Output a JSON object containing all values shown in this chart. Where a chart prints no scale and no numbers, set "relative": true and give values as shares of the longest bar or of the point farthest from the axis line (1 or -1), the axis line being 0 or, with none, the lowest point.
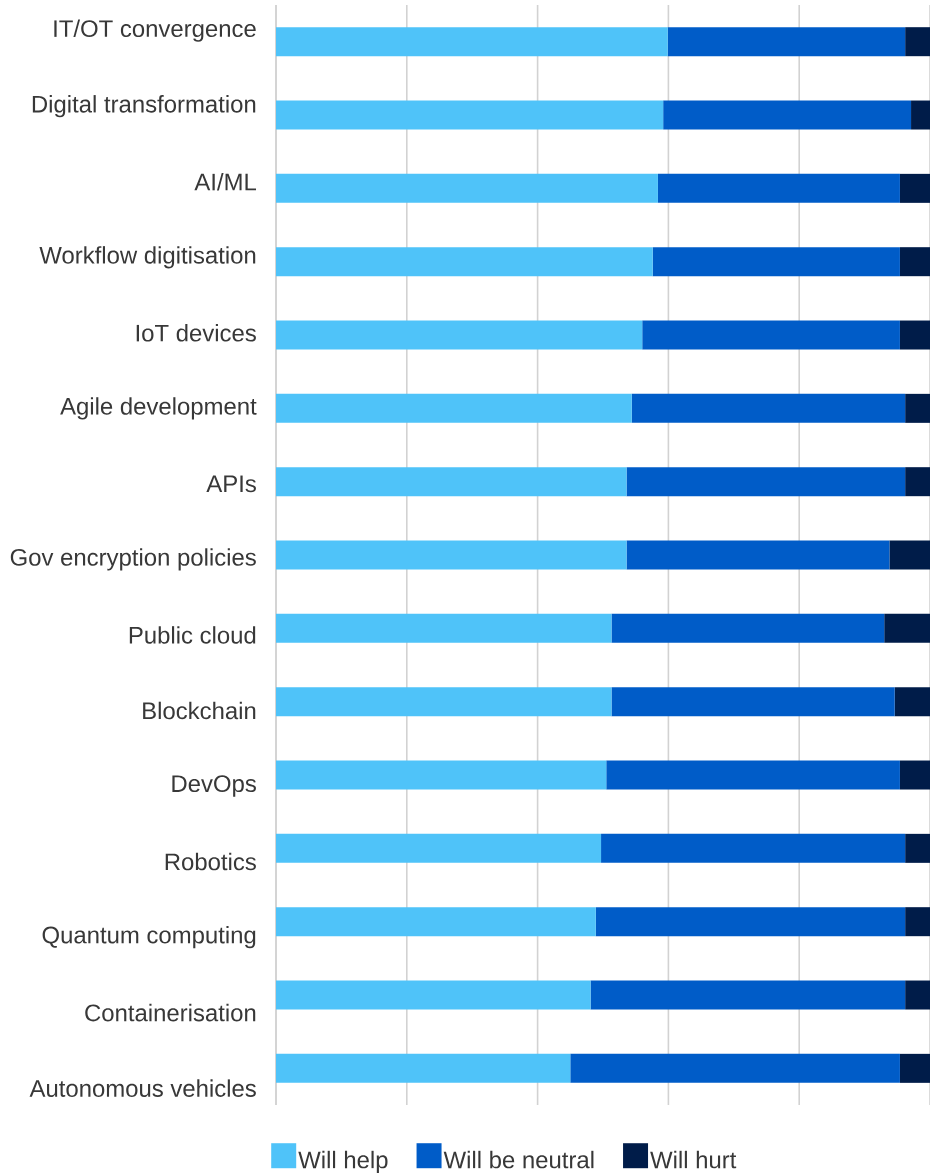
{
  "chart_data": {
    "type": "bar",
    "orientation": "horizontal",
    "stacked": true,
    "relative": true,
    "categories": [
      "IT/OT convergence",
      "Digital transformation",
      "AI/ML",
      "Workflow digitisation",
      "IoT devices",
      "Agile development",
      "APIs",
      "Gov encryption policies",
      "Public cloud",
      "Blockchain",
      "DevOps",
      "Robotics",
      "Quantum computing",
      "Containerisation",
      "Autonomous vehicles"
    ],
    "series": [
      {
        "name": "Will help",
        "color": "#4fc3f9",
        "values": [
          0.599,
          0.592,
          0.584,
          0.576,
          0.56,
          0.544,
          0.536,
          0.536,
          0.513,
          0.513,
          0.505,
          0.497,
          0.489,
          0.481,
          0.45
        ]
      },
      {
        "name": "Will be neutral",
        "color": "#005cc8",
        "values": [
          0.363,
          0.379,
          0.37,
          0.378,
          0.394,
          0.418,
          0.426,
          0.402,
          0.417,
          0.433,
          0.449,
          0.465,
          0.473,
          0.481,
          0.504
        ]
      },
      {
        "name": "Will hurt",
        "color": "#001c49",
        "values": [
          0.038,
          0.029,
          0.046,
          0.046,
          0.046,
          0.038,
          0.038,
          0.062,
          0.07,
          0.054,
          0.046,
          0.038,
          0.038,
          0.038,
          0.046
        ]
      }
    ],
    "grid": "x",
    "legend": "bottom"
  }
}
